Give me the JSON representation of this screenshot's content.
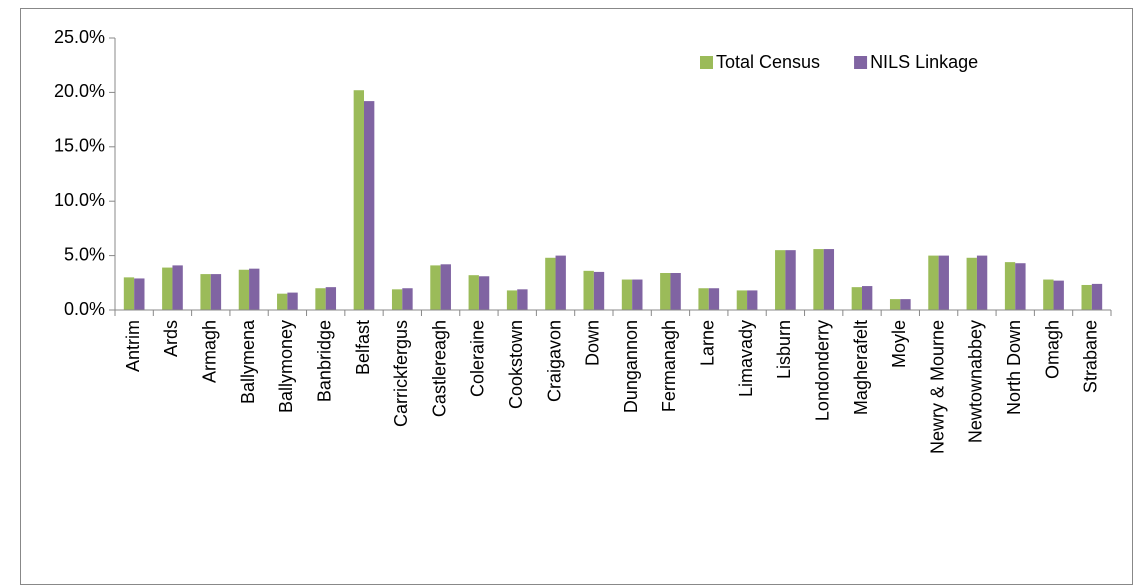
{
  "chart_data": {
    "type": "bar",
    "categories": [
      "Antrim",
      "Ards",
      "Armagh",
      "Ballymena",
      "Ballymoney",
      "Banbridge",
      "Belfast",
      "Carrickfergus",
      "Castlereagh",
      "Coleraine",
      "Cookstown",
      "Craigavon",
      "Down",
      "Dungannon",
      "Fermanagh",
      "Larne",
      "Limavady",
      "Lisburn",
      "Londonderry",
      "Magherafelt",
      "Moyle",
      "Newry & Mourne",
      "Newtownabbey",
      "North Down",
      "Omagh",
      "Strabane"
    ],
    "series": [
      {
        "name": "Total Census",
        "color": "#9bbb59",
        "values": [
          3.0,
          3.9,
          3.3,
          3.7,
          1.5,
          2.0,
          20.2,
          1.9,
          4.1,
          3.2,
          1.8,
          4.8,
          3.6,
          2.8,
          3.4,
          2.0,
          1.8,
          5.5,
          5.6,
          2.1,
          1.0,
          5.0,
          4.8,
          4.4,
          2.8,
          2.3
        ]
      },
      {
        "name": "NILS Linkage",
        "color": "#8064a2",
        "values": [
          2.9,
          4.1,
          3.3,
          3.8,
          1.6,
          2.1,
          19.2,
          2.0,
          4.2,
          3.1,
          1.9,
          5.0,
          3.5,
          2.8,
          3.4,
          2.0,
          1.8,
          5.5,
          5.6,
          2.2,
          1.0,
          5.0,
          5.0,
          4.3,
          2.7,
          2.4
        ]
      }
    ],
    "ylim": [
      0,
      25
    ],
    "yticks": [
      {
        "value": 0,
        "label": "0.0%"
      },
      {
        "value": 5,
        "label": "5.0%"
      },
      {
        "value": 10,
        "label": "10.0%"
      },
      {
        "value": 15,
        "label": "15.0%"
      },
      {
        "value": 20,
        "label": "20.0%"
      },
      {
        "value": 25,
        "label": "25.0%"
      }
    ],
    "grid": false,
    "legend": "top-right"
  }
}
